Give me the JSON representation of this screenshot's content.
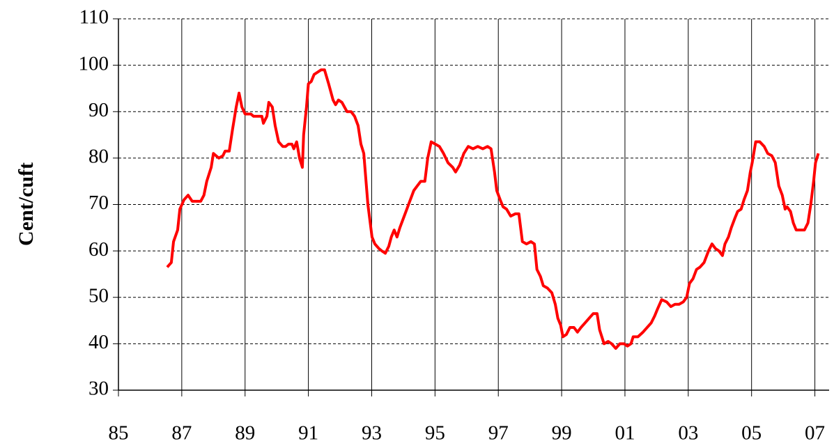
{
  "chart_data": {
    "type": "line",
    "ylabel": "Cent/cuft",
    "color": "#ff0000",
    "grid": true,
    "xlim": [
      1985,
      2007.45
    ],
    "ylim": [
      30,
      110
    ],
    "xticks": [
      {
        "value": 1985,
        "label": "85"
      },
      {
        "value": 1987,
        "label": "87"
      },
      {
        "value": 1989,
        "label": "89"
      },
      {
        "value": 1991,
        "label": "91"
      },
      {
        "value": 1993,
        "label": "93"
      },
      {
        "value": 1995,
        "label": "95"
      },
      {
        "value": 1997,
        "label": "97"
      },
      {
        "value": 1999,
        "label": "99"
      },
      {
        "value": 2001,
        "label": "01"
      },
      {
        "value": 2003,
        "label": "03"
      },
      {
        "value": 2005,
        "label": "05"
      },
      {
        "value": 2007,
        "label": "07"
      }
    ],
    "yticks": [
      30,
      40,
      50,
      60,
      70,
      80,
      90,
      100,
      110
    ],
    "x": [
      1986.54,
      1986.67,
      1986.74,
      1986.87,
      1986.94,
      1987.07,
      1987.2,
      1987.33,
      1987.6,
      1987.7,
      1987.79,
      1987.93,
      1988.0,
      1988.17,
      1988.3,
      1988.37,
      1988.5,
      1988.6,
      1988.72,
      1988.81,
      1988.9,
      1989.0,
      1989.18,
      1989.27,
      1989.53,
      1989.58,
      1989.69,
      1989.75,
      1989.86,
      1989.95,
      1990.06,
      1990.19,
      1990.28,
      1990.37,
      1990.48,
      1990.54,
      1990.63,
      1990.72,
      1990.81,
      1990.85,
      1990.94,
      1991.0,
      1991.09,
      1991.18,
      1991.29,
      1991.4,
      1991.51,
      1991.64,
      1991.78,
      1991.86,
      1991.95,
      1992.06,
      1992.22,
      1992.35,
      1992.46,
      1992.57,
      1992.66,
      1992.75,
      1992.88,
      1993.01,
      1993.1,
      1993.23,
      1993.32,
      1993.43,
      1993.54,
      1993.62,
      1993.71,
      1993.8,
      1993.89,
      1994.0,
      1994.11,
      1994.22,
      1994.33,
      1994.44,
      1994.55,
      1994.68,
      1994.77,
      1994.88,
      1995.01,
      1995.14,
      1995.27,
      1995.41,
      1995.56,
      1995.65,
      1995.78,
      1995.91,
      1996.05,
      1996.2,
      1996.35,
      1996.51,
      1996.66,
      1996.77,
      1996.88,
      1996.95,
      1997.06,
      1997.15,
      1997.26,
      1997.39,
      1997.54,
      1997.65,
      1997.76,
      1997.89,
      1998.03,
      1998.14,
      1998.22,
      1998.33,
      1998.42,
      1998.55,
      1998.69,
      1998.8,
      1998.88,
      1998.97,
      1999.04,
      1999.15,
      1999.26,
      1999.39,
      1999.5,
      1999.61,
      1999.74,
      1999.87,
      2000.0,
      2000.12,
      2000.2,
      2000.34,
      2000.47,
      2000.58,
      2000.71,
      2000.84,
      2000.97,
      2001.08,
      2001.19,
      2001.26,
      2001.41,
      2001.57,
      2001.7,
      2001.83,
      2001.94,
      2002.03,
      2002.16,
      2002.32,
      2002.45,
      2002.58,
      2002.71,
      2002.84,
      2002.95,
      2003.04,
      2003.15,
      2003.26,
      2003.37,
      2003.5,
      2003.64,
      2003.75,
      2003.86,
      2003.97,
      2004.08,
      2004.16,
      2004.27,
      2004.36,
      2004.47,
      2004.56,
      2004.67,
      2004.76,
      2004.87,
      2004.96,
      2005.02,
      2005.13,
      2005.26,
      2005.4,
      2005.51,
      2005.64,
      2005.75,
      2005.86,
      2005.97,
      2006.06,
      2006.12,
      2006.23,
      2006.32,
      2006.41,
      2006.54,
      2006.67,
      2006.78,
      2006.87,
      2006.96,
      2007.02,
      2007.11
    ],
    "values": [
      56.5,
      57.5,
      62,
      64.5,
      69,
      71,
      72,
      70.7,
      70.7,
      72,
      75,
      78,
      81,
      80,
      80.5,
      81.5,
      81.5,
      86,
      91,
      94,
      91,
      89.5,
      89.5,
      89,
      89,
      87.5,
      89,
      92,
      91,
      87,
      83.5,
      82.5,
      82.5,
      83,
      83,
      82,
      83.5,
      80,
      78,
      85,
      91,
      96,
      96.5,
      98,
      98.5,
      99,
      99,
      96,
      92.5,
      91.5,
      92.5,
      92,
      90,
      90,
      89,
      87,
      83,
      81,
      70,
      63,
      61.5,
      60.5,
      60,
      59.5,
      61,
      63,
      64.5,
      63,
      65,
      67,
      69,
      71,
      73,
      74,
      75,
      75,
      80,
      83.5,
      83,
      82.5,
      81,
      79,
      78,
      77,
      78.5,
      81,
      82.5,
      82,
      82.5,
      82,
      82.5,
      82,
      77,
      73,
      71,
      69.5,
      69,
      67.5,
      68,
      68,
      62,
      61.5,
      62,
      61.5,
      56,
      54.5,
      52.5,
      52,
      51,
      48.5,
      45.5,
      44,
      41.5,
      42,
      43.5,
      43.5,
      42.5,
      43.5,
      44.5,
      45.5,
      46.5,
      46.5,
      43,
      40,
      40.5,
      40,
      39,
      40,
      40,
      39.5,
      40,
      41.5,
      41.5,
      42.5,
      43.5,
      44.5,
      46,
      47.5,
      49.5,
      49,
      48,
      48.5,
      48.5,
      49,
      50,
      53,
      54,
      56,
      56.5,
      57.5,
      60,
      61.5,
      60.5,
      60,
      59,
      61.5,
      63,
      65,
      67,
      68.5,
      69,
      71,
      73,
      77,
      79,
      83.5,
      83.5,
      82.5,
      81,
      80.5,
      79,
      74,
      72,
      69,
      69.5,
      68.5,
      66,
      64.5,
      64.5,
      64.5,
      66,
      70,
      75,
      79,
      81
    ]
  }
}
